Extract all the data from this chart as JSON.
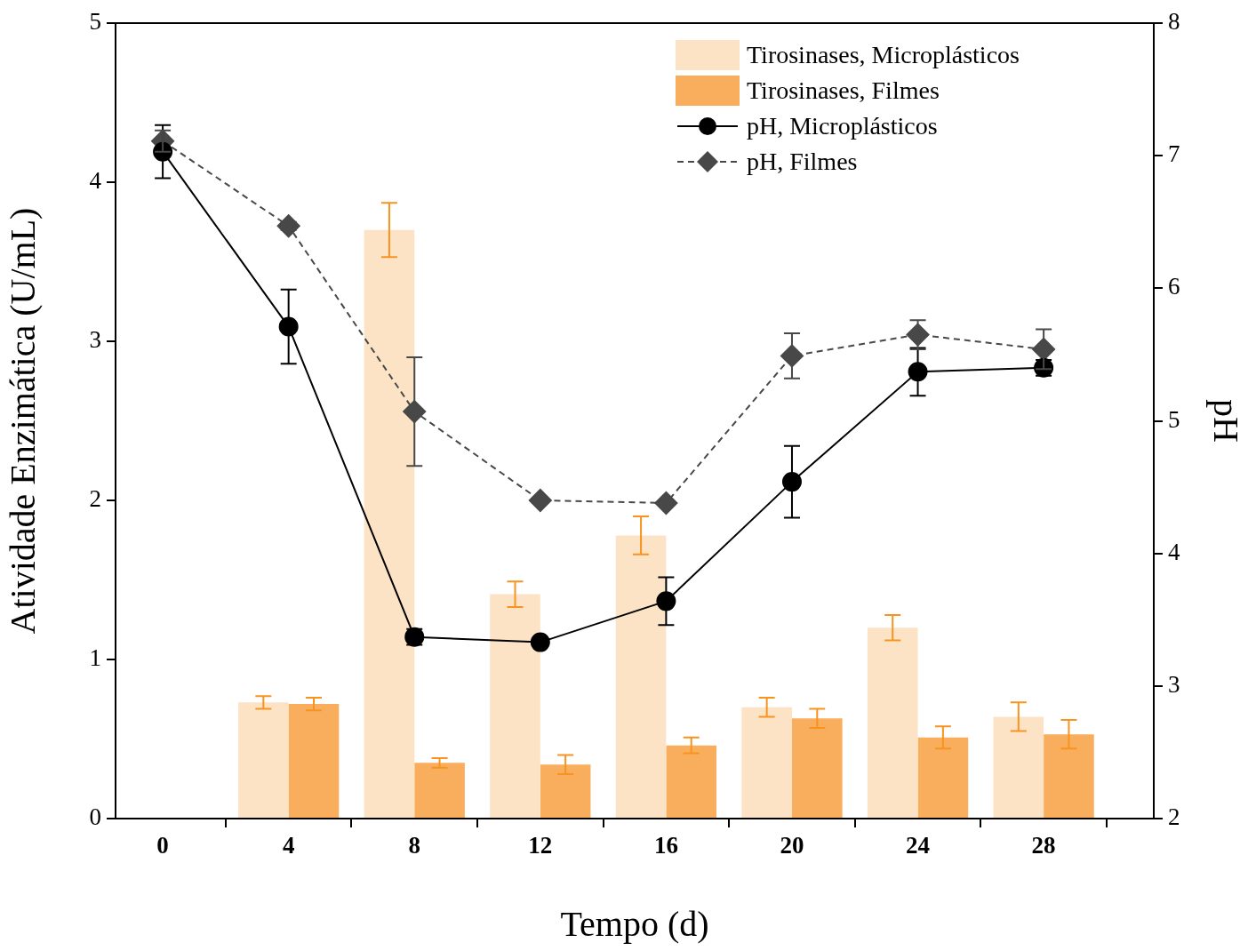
{
  "chart_data": {
    "type": "bar",
    "xlabel": "Tempo (d)",
    "ylabel": "Atividade Enzimática (U/mL)",
    "y2label": "pH",
    "x": [
      0,
      4,
      8,
      12,
      16,
      20,
      24,
      28
    ],
    "xlim": [
      -1.5,
      31.5
    ],
    "xticks": [
      0,
      4,
      8,
      12,
      16,
      20,
      24,
      28
    ],
    "ylim": [
      0,
      5
    ],
    "yticks": [
      0,
      1,
      2,
      3,
      4,
      5
    ],
    "y2lim": [
      2,
      8
    ],
    "y2ticks": [
      2,
      3,
      4,
      5,
      6,
      7,
      8
    ],
    "legend": "top right",
    "series": [
      {
        "name": "Tirosinases, Microplásticos",
        "color": "#fde3c6",
        "values": [
          null,
          0.73,
          3.7,
          1.41,
          1.78,
          0.7,
          1.2,
          0.64
        ],
        "errors": [
          null,
          0.04,
          0.17,
          0.08,
          0.12,
          0.06,
          0.08,
          0.09
        ]
      },
      {
        "name": "Tirosinases, Filmes",
        "color": "#f9ae5e",
        "values": [
          null,
          0.72,
          0.35,
          0.34,
          0.46,
          0.63,
          0.51,
          0.53
        ],
        "errors": [
          null,
          0.04,
          0.03,
          0.06,
          0.05,
          0.06,
          0.07,
          0.09
        ]
      },
      {
        "name": "pH, Microplásticos",
        "type": "line",
        "axis": "y2",
        "color": "#000000",
        "marker": "circle",
        "line_style": "solid",
        "values": [
          7.03,
          5.71,
          3.37,
          3.33,
          3.64,
          4.54,
          5.37,
          5.4
        ],
        "errors": [
          0.2,
          0.28,
          0.06,
          null,
          0.18,
          0.27,
          0.18,
          0.06
        ]
      },
      {
        "name": "pH, Filmes",
        "type": "line",
        "axis": "y2",
        "color": "#484848",
        "marker": "diamond",
        "line_style": "dashed",
        "values": [
          7.11,
          6.47,
          5.07,
          4.4,
          4.38,
          5.49,
          5.65,
          5.54
        ],
        "errors": [
          0.08,
          0.03,
          0.41,
          null,
          null,
          0.17,
          0.11,
          0.15
        ]
      }
    ]
  }
}
